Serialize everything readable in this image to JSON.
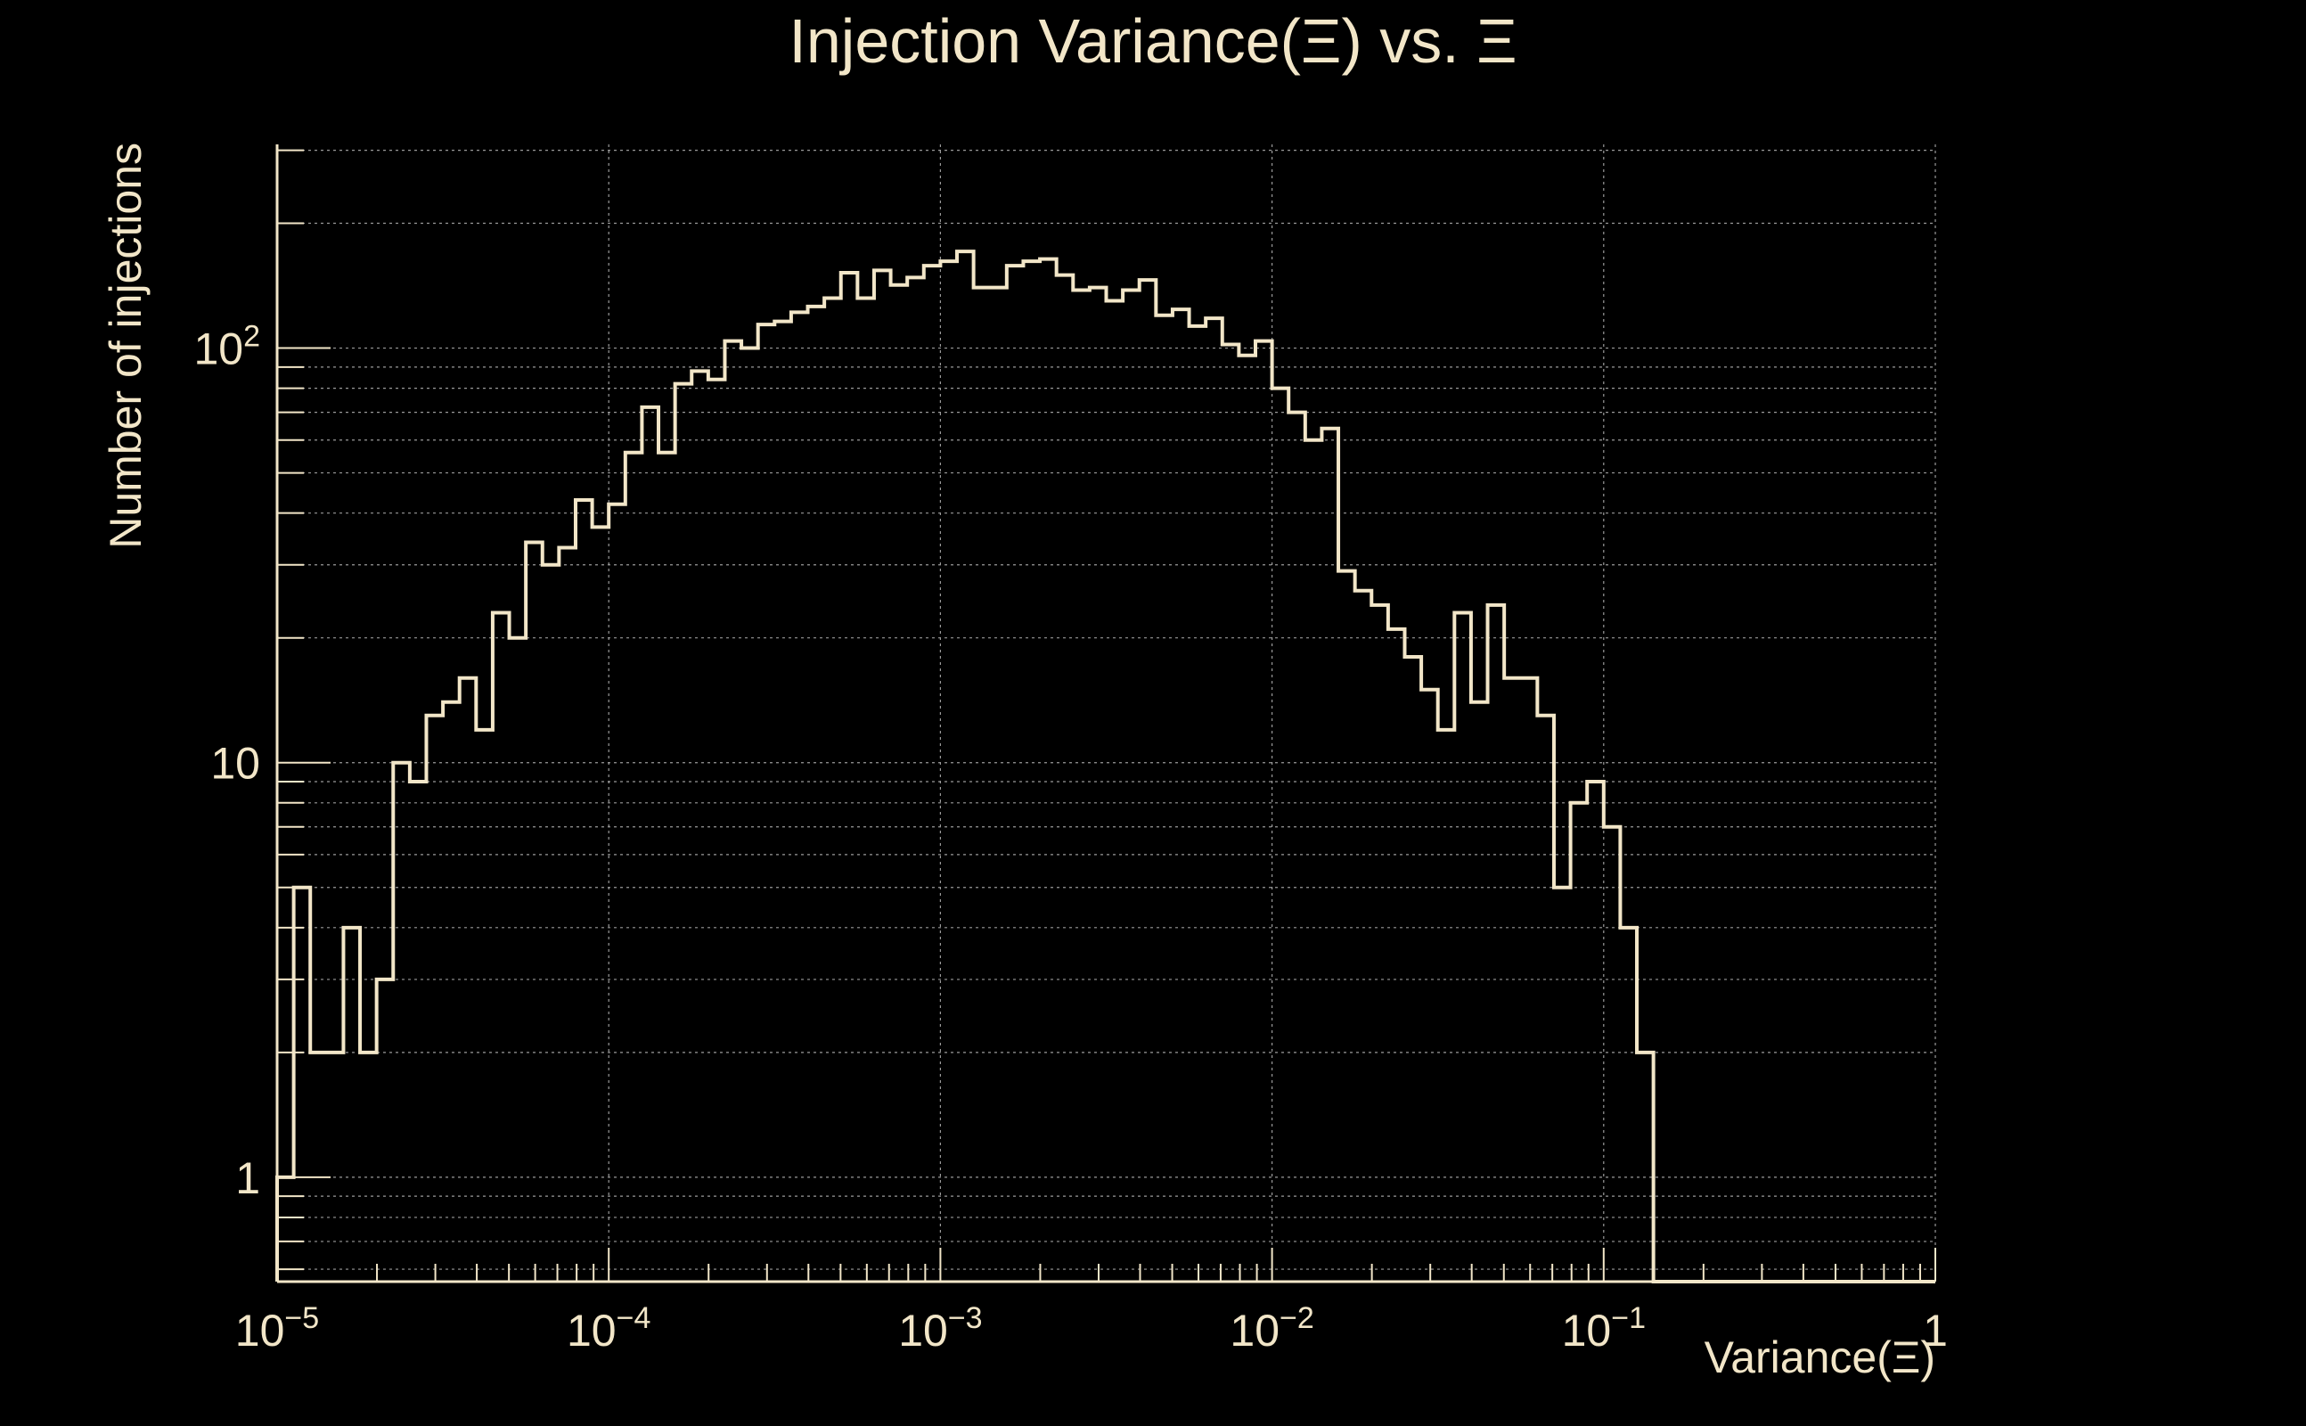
{
  "chart_data": {
    "type": "histogram",
    "title": "Injection Variance(Ξ) vs. Ξ",
    "xlabel": "Variance(Ξ)",
    "ylabel": "Number of injections",
    "x_scale": "log",
    "y_scale": "log",
    "xlim": [
      1e-05,
      1
    ],
    "ylim": [
      0.56,
      310
    ],
    "x_tick_labels": [
      {
        "base": "10",
        "exp": "−5",
        "value": 1e-05
      },
      {
        "base": "10",
        "exp": "−4",
        "value": 0.0001
      },
      {
        "base": "10",
        "exp": "−3",
        "value": 0.001
      },
      {
        "base": "10",
        "exp": "−2",
        "value": 0.01
      },
      {
        "base": "10",
        "exp": "−1",
        "value": 0.1
      },
      {
        "base": "1",
        "exp": "",
        "value": 1
      }
    ],
    "y_tick_labels": [
      {
        "base": "1",
        "exp": "",
        "value": 1
      },
      {
        "base": "10",
        "exp": "",
        "value": 10
      },
      {
        "base": "10",
        "exp": "2",
        "value": 100
      }
    ],
    "grid": true,
    "colors": {
      "background": "#000000",
      "foreground": "#f2e6c8",
      "grid": "#9a9a9a"
    },
    "bins_per_decade": 20,
    "bin_counts": [
      1,
      5,
      2,
      2,
      4,
      2,
      3,
      10,
      9,
      13,
      14,
      16,
      12,
      23,
      20,
      34,
      30,
      33,
      43,
      37,
      42,
      56,
      72,
      56,
      82,
      88,
      84,
      104,
      100,
      114,
      116,
      122,
      126,
      132,
      152,
      132,
      154,
      142,
      148,
      158,
      162,
      171,
      140,
      140,
      158,
      162,
      164,
      150,
      138,
      140,
      130,
      138,
      146,
      120,
      124,
      113,
      118,
      102,
      96,
      104,
      80,
      70,
      60,
      64,
      29,
      26,
      24,
      21,
      18,
      15,
      12,
      23,
      14,
      24,
      16,
      16,
      13,
      5,
      8,
      9,
      7,
      4,
      2,
      0,
      0,
      0,
      0,
      0,
      0,
      0,
      0,
      0,
      0,
      0,
      0,
      0,
      0,
      0,
      0,
      0
    ]
  }
}
